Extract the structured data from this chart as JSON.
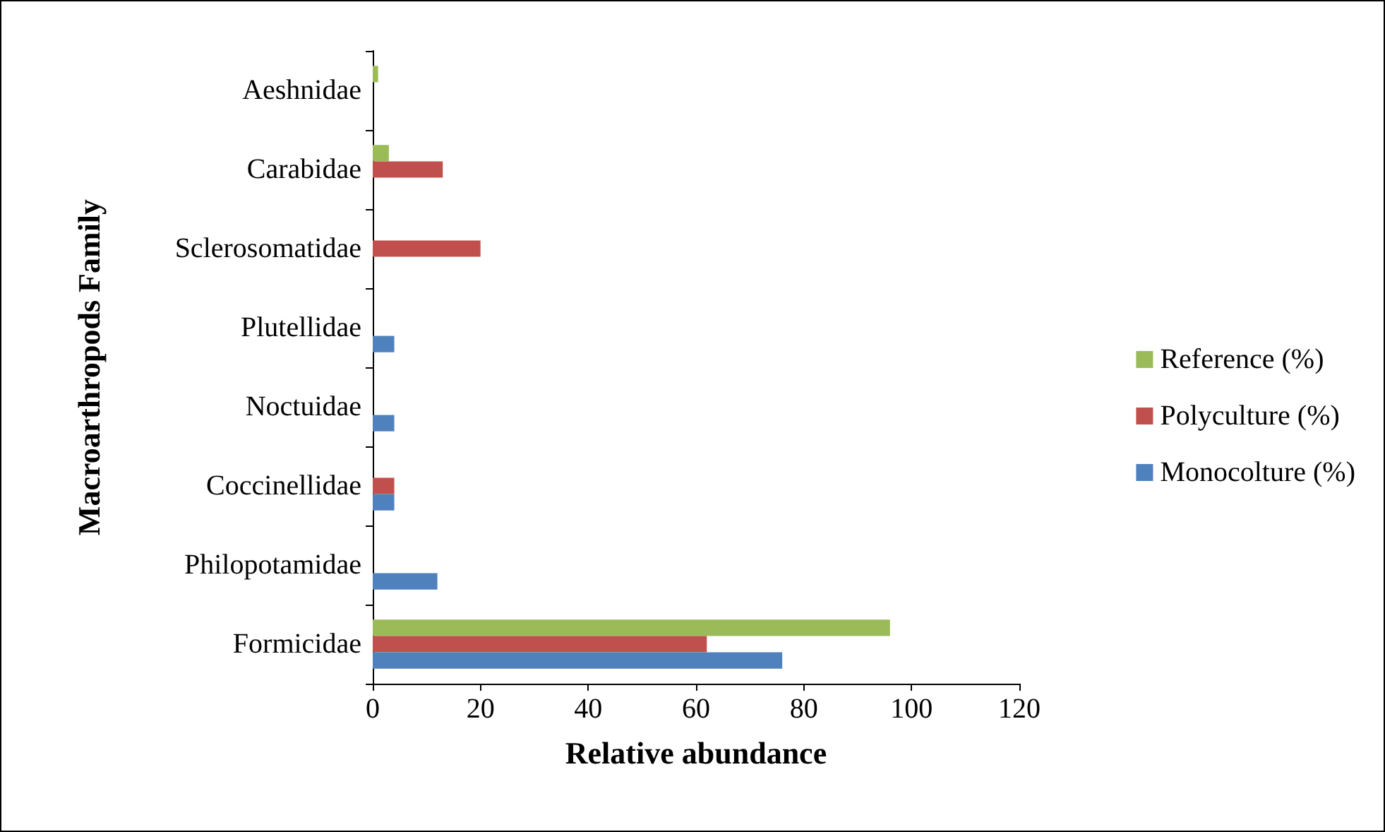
{
  "chart_data": {
    "type": "bar",
    "orientation": "horizontal",
    "xlabel": "Relative abundance",
    "ylabel": "Macroarthropods Family",
    "categories": [
      "Aeshnidae",
      "Carabidae",
      "Sclerosomatidae",
      "Plutellidae",
      "Noctuidae",
      "Coccinellidae",
      "Philopotamidae",
      "Formicidae"
    ],
    "series": [
      {
        "name": "Reference (%)",
        "color": "#9bbb59",
        "values": [
          1,
          3,
          null,
          null,
          null,
          null,
          null,
          96
        ]
      },
      {
        "name": "Polyculture (%)",
        "color": "#c0504d",
        "values": [
          null,
          13,
          20,
          null,
          null,
          4,
          null,
          62
        ]
      },
      {
        "name": "Monocolture (%)",
        "color": "#4f81bd",
        "values": [
          null,
          null,
          null,
          4,
          4,
          4,
          12,
          76
        ]
      }
    ],
    "xlim": [
      0,
      120
    ],
    "xticks": [
      0,
      20,
      40,
      60,
      80,
      100,
      120
    ],
    "grid": false,
    "legend": "right"
  }
}
